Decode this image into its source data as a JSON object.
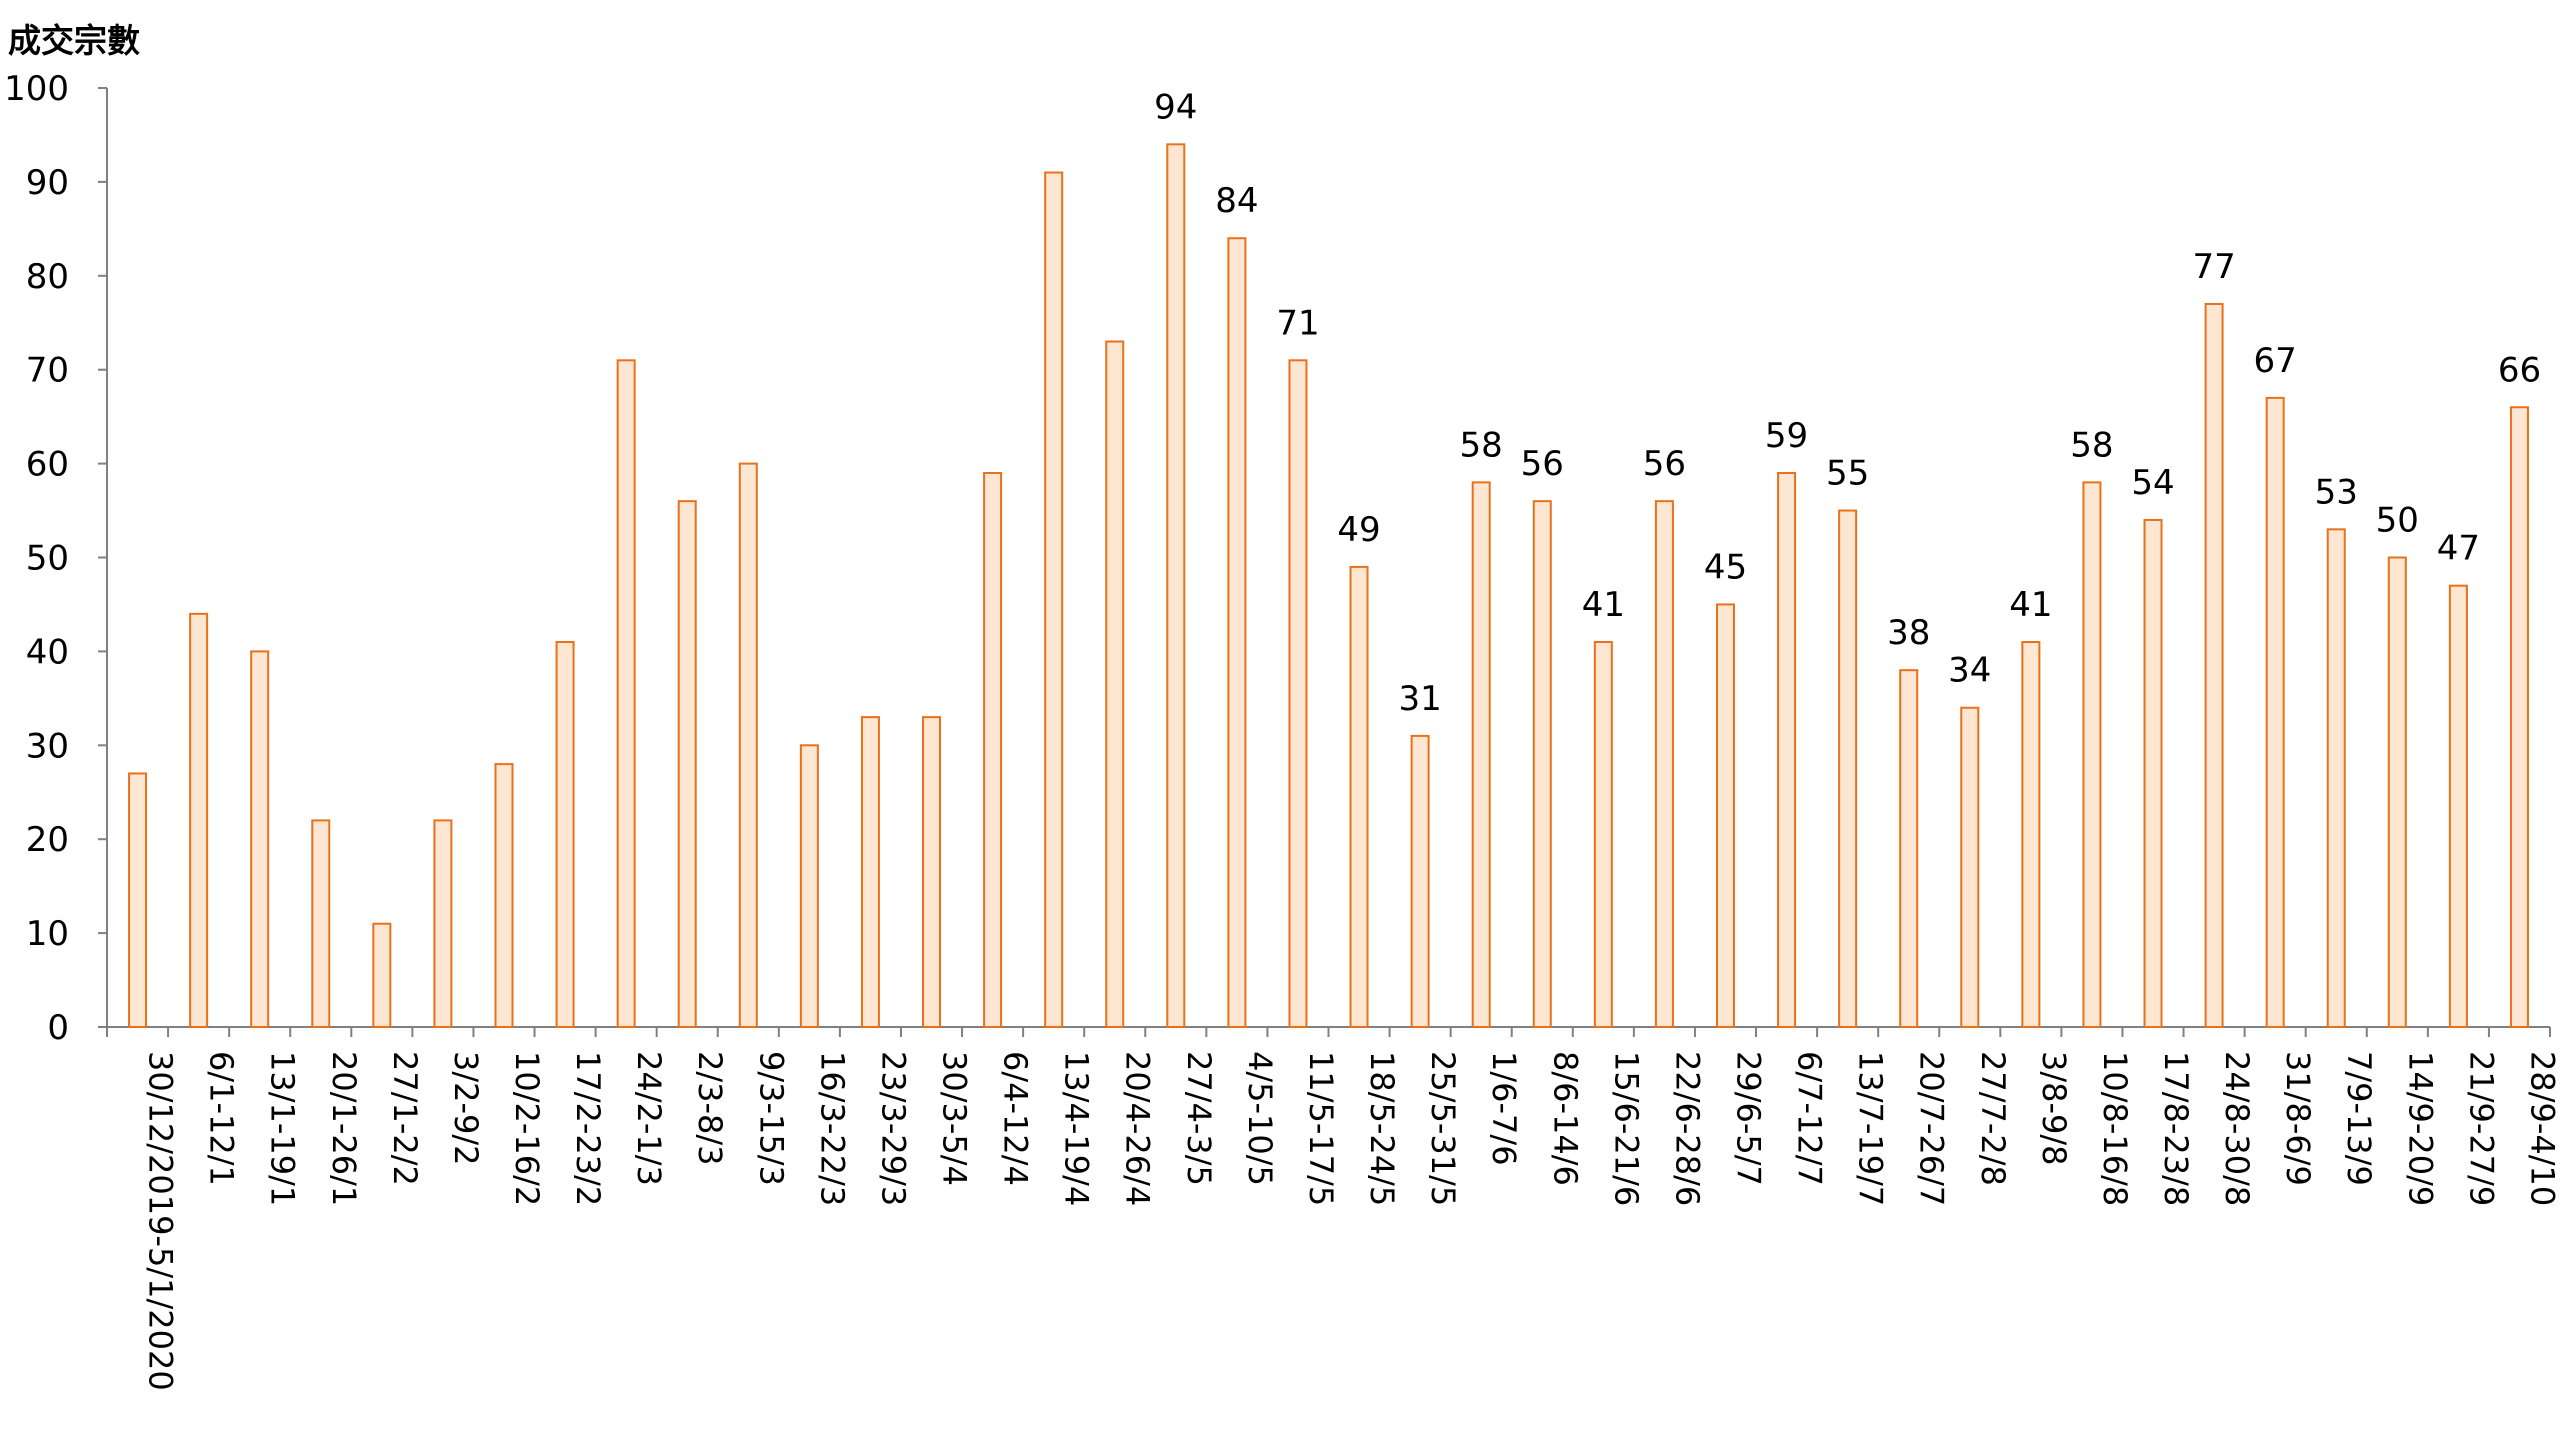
{
  "chart_data": {
    "type": "bar",
    "ylabel": "成交宗數",
    "ylim": [
      0,
      100
    ],
    "yticks": [
      0,
      10,
      20,
      30,
      40,
      50,
      60,
      70,
      80,
      90,
      100
    ],
    "grid": false,
    "categories": [
      "30/12/2019-5/1/2020",
      "6/1-12/1",
      "13/1-19/1",
      "20/1-26/1",
      "27/1-2/2",
      "3/2-9/2",
      "10/2-16/2",
      "17/2-23/2",
      "24/2-1/3",
      "2/3-8/3",
      "9/3-15/3",
      "16/3-22/3",
      "23/3-29/3",
      "30/3-5/4",
      "6/4-12/4",
      "13/4-19/4",
      "20/4-26/4",
      "27/4-3/5",
      "4/5-10/5",
      "11/5-17/5",
      "18/5-24/5",
      "25/5-31/5",
      "1/6-7/6",
      "8/6-14/6",
      "15/6-21/6",
      "22/6-28/6",
      "29/6-5/7",
      "6/7-12/7",
      "13/7-19/7",
      "20/7-26/7",
      "27/7-2/8",
      "3/8-9/8",
      "10/8-16/8",
      "17/8-23/8",
      "24/8-30/8",
      "31/8-6/9",
      "7/9-13/9",
      "14/9-20/9",
      "21/9-27/9",
      "28/9-4/10"
    ],
    "values": [
      27,
      44,
      40,
      22,
      11,
      22,
      28,
      41,
      71,
      56,
      60,
      30,
      33,
      33,
      59,
      91,
      73,
      94,
      84,
      71,
      49,
      31,
      58,
      56,
      41,
      56,
      45,
      59,
      55,
      38,
      34,
      41,
      58,
      54,
      77,
      67,
      53,
      50,
      47,
      66
    ],
    "data_labels_shown_from_index": 17,
    "bar_fill": "#fde6d2",
    "bar_stroke": "#e8711a",
    "axis_color": "#808080"
  }
}
